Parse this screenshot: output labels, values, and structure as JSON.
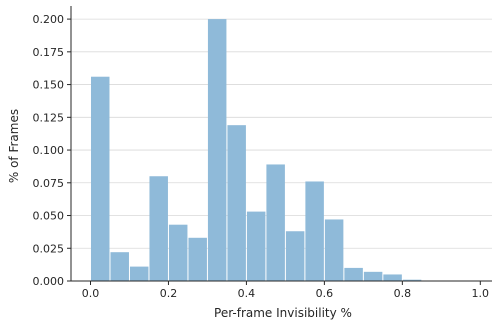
{
  "chart_data": {
    "type": "bar",
    "title": "",
    "xlabel": "Per-frame Invisibility %",
    "ylabel": "% of Frames",
    "xlim": [
      -0.05,
      1.03
    ],
    "ylim": [
      0,
      0.21
    ],
    "grid": "horizontal",
    "bar_color": "#8fbad9",
    "bin_width": 0.05,
    "bins_left": [
      0.0,
      0.05,
      0.1,
      0.15,
      0.2,
      0.25,
      0.3,
      0.35,
      0.4,
      0.45,
      0.5,
      0.55,
      0.6,
      0.65,
      0.7,
      0.75,
      0.8,
      0.85,
      0.9,
      0.95
    ],
    "values": [
      0.156,
      0.022,
      0.011,
      0.08,
      0.043,
      0.033,
      0.2,
      0.119,
      0.053,
      0.089,
      0.038,
      0.076,
      0.047,
      0.01,
      0.007,
      0.005,
      0.001,
      0.0,
      0.0,
      0.0
    ],
    "xticks": [
      0.0,
      0.2,
      0.4,
      0.6,
      0.8,
      1.0
    ],
    "xtick_labels": [
      "0.0",
      "0.2",
      "0.4",
      "0.6",
      "0.8",
      "1.0"
    ],
    "yticks": [
      0.0,
      0.025,
      0.05,
      0.075,
      0.1,
      0.125,
      0.15,
      0.175,
      0.2
    ],
    "ytick_labels": [
      "0.000",
      "0.025",
      "0.050",
      "0.075",
      "0.100",
      "0.125",
      "0.150",
      "0.175",
      "0.200"
    ]
  }
}
